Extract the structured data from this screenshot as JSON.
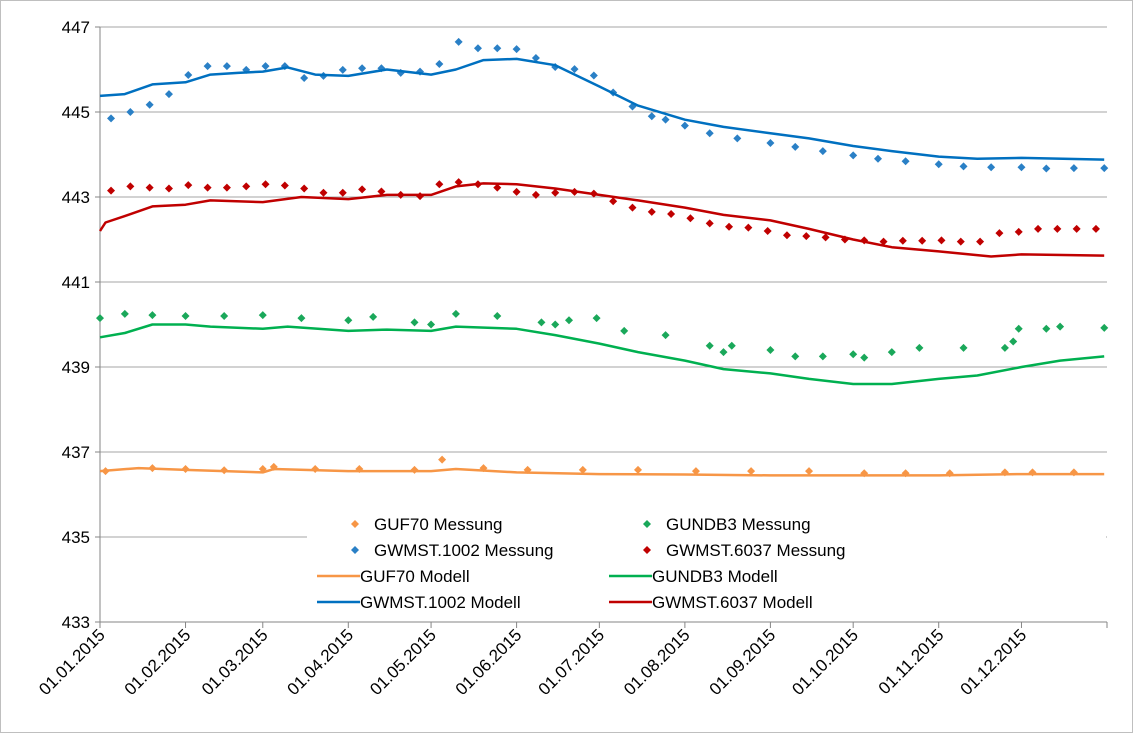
{
  "chart_data": {
    "type": "line",
    "xlim": [
      "2015-01-01",
      "2016-01-01"
    ],
    "xticks": [
      {
        "value": "2015-01-01",
        "label": "01.01.2015"
      },
      {
        "value": "2015-02-01",
        "label": "01.02.2015"
      },
      {
        "value": "2015-03-01",
        "label": "01.03.2015"
      },
      {
        "value": "2015-04-01",
        "label": "01.04.2015"
      },
      {
        "value": "2015-05-01",
        "label": "01.05.2015"
      },
      {
        "value": "2015-06-01",
        "label": "01.06.2015"
      },
      {
        "value": "2015-07-01",
        "label": "01.07.2015"
      },
      {
        "value": "2015-08-01",
        "label": "01.08.2015"
      },
      {
        "value": "2015-09-01",
        "label": "01.09.2015"
      },
      {
        "value": "2015-10-01",
        "label": "01.10.2015"
      },
      {
        "value": "2015-11-01",
        "label": "01.11.2015"
      },
      {
        "value": "2015-12-01",
        "label": "01.12.2015"
      }
    ],
    "ylim": [
      433,
      447
    ],
    "yticks": [
      433,
      435,
      437,
      439,
      441,
      443,
      445,
      447
    ],
    "grid": true,
    "legend": "bottom-right",
    "series": [
      {
        "name": "GUF70 Messung",
        "mode": "markers",
        "color": "#f79646",
        "x": [
          "2015-01-03",
          "2015-01-20",
          "2015-02-01",
          "2015-02-15",
          "2015-03-01",
          "2015-03-05",
          "2015-03-20",
          "2015-04-05",
          "2015-04-25",
          "2015-05-05",
          "2015-05-20",
          "2015-06-05",
          "2015-06-25",
          "2015-07-15",
          "2015-08-05",
          "2015-08-25",
          "2015-09-15",
          "2015-10-05",
          "2015-10-20",
          "2015-11-05",
          "2015-11-25",
          "2015-12-05",
          "2015-12-20"
        ],
        "values": [
          436.55,
          436.62,
          436.6,
          436.57,
          436.6,
          436.65,
          436.6,
          436.6,
          436.58,
          436.82,
          436.62,
          436.58,
          436.58,
          436.58,
          436.55,
          436.55,
          436.55,
          436.5,
          436.5,
          436.5,
          436.52,
          436.52,
          436.52
        ]
      },
      {
        "name": "GUNDB3 Messung",
        "mode": "markers",
        "color": "#1aa85a",
        "x": [
          "2015-01-01",
          "2015-01-10",
          "2015-01-20",
          "2015-02-01",
          "2015-02-15",
          "2015-03-01",
          "2015-03-15",
          "2015-04-01",
          "2015-04-10",
          "2015-04-25",
          "2015-05-01",
          "2015-05-10",
          "2015-05-25",
          "2015-06-10",
          "2015-06-15",
          "2015-06-20",
          "2015-06-30",
          "2015-07-10",
          "2015-07-25",
          "2015-08-10",
          "2015-08-15",
          "2015-08-18",
          "2015-09-01",
          "2015-09-10",
          "2015-09-20",
          "2015-10-01",
          "2015-10-05",
          "2015-10-15",
          "2015-10-25",
          "2015-11-10",
          "2015-11-25",
          "2015-11-28",
          "2015-11-30",
          "2015-12-10",
          "2015-12-15",
          "2015-12-31"
        ],
        "values": [
          440.15,
          440.25,
          440.22,
          440.2,
          440.2,
          440.22,
          440.15,
          440.1,
          440.18,
          440.05,
          440.0,
          440.25,
          440.2,
          440.05,
          440.0,
          440.1,
          440.15,
          439.85,
          439.75,
          439.5,
          439.35,
          439.5,
          439.4,
          439.25,
          439.25,
          439.3,
          439.22,
          439.35,
          439.45,
          439.45,
          439.45,
          439.6,
          439.9,
          439.9,
          439.95,
          439.92
        ]
      },
      {
        "name": "GWMST.1002 Messung",
        "mode": "markers",
        "color": "#2a80c6",
        "x": [
          "2015-01-05",
          "2015-01-12",
          "2015-01-19",
          "2015-01-26",
          "2015-02-02",
          "2015-02-09",
          "2015-02-16",
          "2015-02-23",
          "2015-03-02",
          "2015-03-09",
          "2015-03-16",
          "2015-03-23",
          "2015-03-30",
          "2015-04-06",
          "2015-04-13",
          "2015-04-20",
          "2015-04-27",
          "2015-05-04",
          "2015-05-11",
          "2015-05-18",
          "2015-05-25",
          "2015-06-01",
          "2015-06-08",
          "2015-06-15",
          "2015-06-22",
          "2015-06-29",
          "2015-07-06",
          "2015-07-13",
          "2015-07-20",
          "2015-07-25",
          "2015-08-01",
          "2015-08-10",
          "2015-08-20",
          "2015-09-01",
          "2015-09-10",
          "2015-09-20",
          "2015-10-01",
          "2015-10-10",
          "2015-10-20",
          "2015-11-01",
          "2015-11-10",
          "2015-11-20",
          "2015-12-01",
          "2015-12-10",
          "2015-12-20",
          "2015-12-31"
        ],
        "values": [
          444.85,
          445.0,
          445.17,
          445.42,
          445.87,
          446.08,
          446.08,
          445.99,
          446.08,
          446.08,
          445.8,
          445.85,
          445.99,
          446.03,
          446.03,
          445.92,
          445.95,
          446.13,
          446.65,
          446.5,
          446.5,
          446.48,
          446.27,
          446.06,
          446.01,
          445.86,
          445.46,
          445.13,
          444.9,
          444.82,
          444.68,
          444.5,
          444.38,
          444.27,
          444.18,
          444.08,
          443.98,
          443.9,
          443.84,
          443.77,
          443.72,
          443.7,
          443.7,
          443.67,
          443.68,
          443.68
        ]
      },
      {
        "name": "GWMST.6037 Messung",
        "mode": "markers",
        "color": "#c00000",
        "x": [
          "2015-01-05",
          "2015-01-12",
          "2015-01-19",
          "2015-01-26",
          "2015-02-02",
          "2015-02-09",
          "2015-02-16",
          "2015-02-23",
          "2015-03-02",
          "2015-03-09",
          "2015-03-16",
          "2015-03-23",
          "2015-03-30",
          "2015-04-06",
          "2015-04-13",
          "2015-04-20",
          "2015-04-27",
          "2015-05-04",
          "2015-05-11",
          "2015-05-18",
          "2015-05-25",
          "2015-06-01",
          "2015-06-08",
          "2015-06-15",
          "2015-06-22",
          "2015-06-29",
          "2015-07-06",
          "2015-07-13",
          "2015-07-20",
          "2015-07-27",
          "2015-08-03",
          "2015-08-10",
          "2015-08-17",
          "2015-08-24",
          "2015-08-31",
          "2015-09-07",
          "2015-09-14",
          "2015-09-21",
          "2015-09-28",
          "2015-10-05",
          "2015-10-12",
          "2015-10-19",
          "2015-10-26",
          "2015-11-02",
          "2015-11-09",
          "2015-11-16",
          "2015-11-23",
          "2015-11-30",
          "2015-12-07",
          "2015-12-14",
          "2015-12-21",
          "2015-12-28"
        ],
        "values": [
          443.15,
          443.25,
          443.22,
          443.2,
          443.28,
          443.22,
          443.22,
          443.25,
          443.3,
          443.27,
          443.2,
          443.1,
          443.1,
          443.18,
          443.13,
          443.05,
          443.02,
          443.3,
          443.35,
          443.3,
          443.22,
          443.12,
          443.05,
          443.1,
          443.12,
          443.08,
          442.9,
          442.75,
          442.65,
          442.6,
          442.5,
          442.38,
          442.3,
          442.28,
          442.2,
          442.1,
          442.08,
          442.05,
          442.0,
          441.98,
          441.95,
          441.97,
          441.97,
          441.98,
          441.95,
          441.95,
          442.15,
          442.18,
          442.25,
          442.25,
          442.25,
          442.25
        ]
      },
      {
        "name": "GUF70 Modell",
        "mode": "lines",
        "color": "#f79646",
        "x": [
          "2015-01-01",
          "2015-01-15",
          "2015-02-01",
          "2015-03-01",
          "2015-03-05",
          "2015-04-01",
          "2015-05-01",
          "2015-05-10",
          "2015-06-01",
          "2015-07-01",
          "2015-08-01",
          "2015-09-01",
          "2015-10-01",
          "2015-11-01",
          "2015-12-01",
          "2015-12-31"
        ],
        "values": [
          436.55,
          436.62,
          436.58,
          436.52,
          436.6,
          436.55,
          436.55,
          436.6,
          436.52,
          436.48,
          436.47,
          436.45,
          436.45,
          436.45,
          436.48,
          436.48
        ]
      },
      {
        "name": "GUNDB3 Modell",
        "mode": "lines",
        "color": "#00b050",
        "x": [
          "2015-01-01",
          "2015-01-10",
          "2015-01-20",
          "2015-02-01",
          "2015-02-10",
          "2015-03-01",
          "2015-03-10",
          "2015-04-01",
          "2015-04-15",
          "2015-05-01",
          "2015-05-10",
          "2015-06-01",
          "2015-06-15",
          "2015-07-01",
          "2015-07-15",
          "2015-08-01",
          "2015-08-15",
          "2015-09-01",
          "2015-09-15",
          "2015-10-01",
          "2015-10-15",
          "2015-11-01",
          "2015-11-15",
          "2015-12-01",
          "2015-12-15",
          "2015-12-31"
        ],
        "values": [
          439.7,
          439.8,
          440.0,
          440.0,
          439.95,
          439.9,
          439.95,
          439.85,
          439.88,
          439.85,
          439.95,
          439.9,
          439.75,
          439.55,
          439.35,
          439.15,
          438.95,
          438.85,
          438.72,
          438.6,
          438.6,
          438.72,
          438.8,
          439.0,
          439.15,
          439.25
        ]
      },
      {
        "name": "GWMST.1002 Modell",
        "mode": "lines",
        "color": "#0070c0",
        "x": [
          "2015-01-01",
          "2015-01-10",
          "2015-01-20",
          "2015-02-01",
          "2015-02-10",
          "2015-02-20",
          "2015-03-01",
          "2015-03-10",
          "2015-03-20",
          "2015-04-01",
          "2015-04-15",
          "2015-05-01",
          "2015-05-10",
          "2015-05-20",
          "2015-06-01",
          "2015-06-15",
          "2015-07-01",
          "2015-07-15",
          "2015-08-01",
          "2015-08-15",
          "2015-09-01",
          "2015-09-15",
          "2015-10-01",
          "2015-10-15",
          "2015-11-01",
          "2015-11-15",
          "2015-12-01",
          "2015-12-31"
        ],
        "values": [
          445.38,
          445.42,
          445.65,
          445.7,
          445.88,
          445.92,
          445.95,
          446.05,
          445.88,
          445.85,
          446.0,
          445.88,
          446.0,
          446.22,
          446.25,
          446.1,
          445.6,
          445.15,
          444.82,
          444.65,
          444.5,
          444.38,
          444.2,
          444.08,
          443.95,
          443.9,
          443.92,
          443.88
        ]
      },
      {
        "name": "GWMST.6037 Modell",
        "mode": "lines",
        "color": "#c00000",
        "x": [
          "2015-01-01",
          "2015-01-03",
          "2015-01-10",
          "2015-01-20",
          "2015-02-01",
          "2015-02-10",
          "2015-03-01",
          "2015-03-15",
          "2015-04-01",
          "2015-04-15",
          "2015-05-01",
          "2015-05-10",
          "2015-05-20",
          "2015-06-01",
          "2015-06-15",
          "2015-07-01",
          "2015-07-15",
          "2015-08-01",
          "2015-08-15",
          "2015-09-01",
          "2015-09-15",
          "2015-10-01",
          "2015-10-15",
          "2015-11-01",
          "2015-11-20",
          "2015-12-01",
          "2015-12-31"
        ],
        "values": [
          442.2,
          442.4,
          442.55,
          442.78,
          442.82,
          442.92,
          442.88,
          443.0,
          442.95,
          443.05,
          443.05,
          443.25,
          443.32,
          443.3,
          443.2,
          443.05,
          442.92,
          442.75,
          442.58,
          442.45,
          442.25,
          442.0,
          441.82,
          441.72,
          441.6,
          441.65,
          441.62
        ]
      }
    ]
  }
}
